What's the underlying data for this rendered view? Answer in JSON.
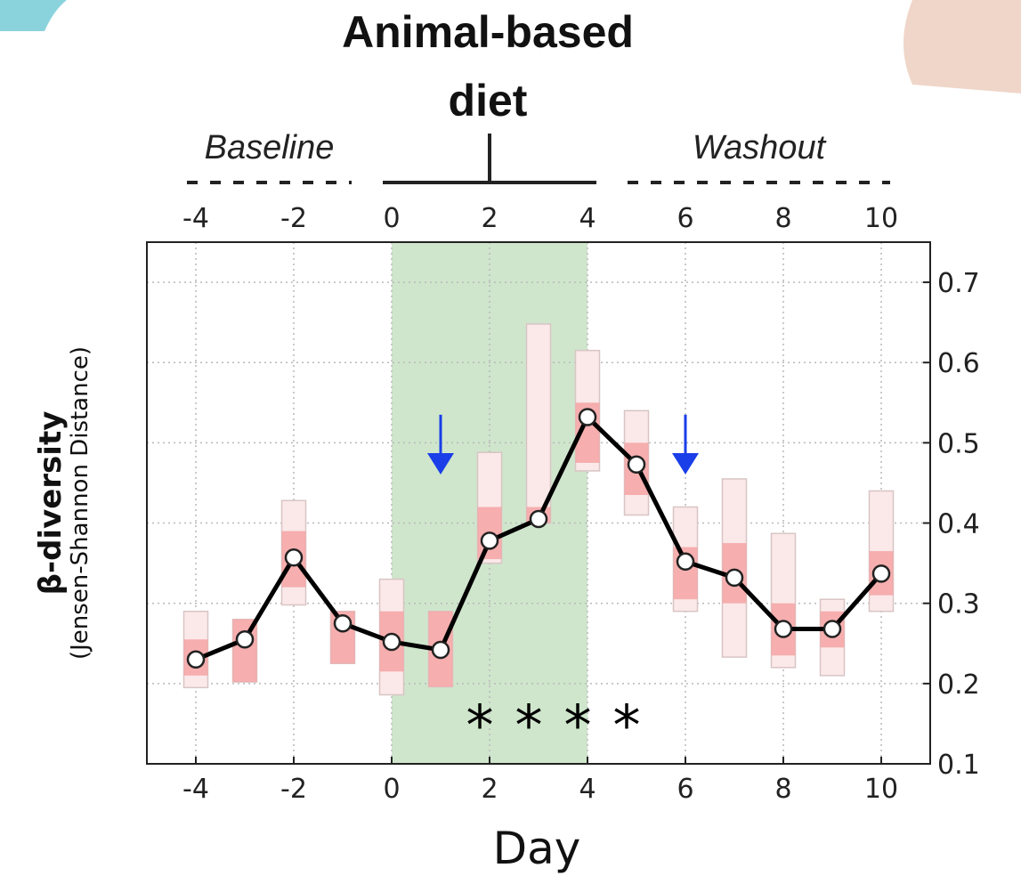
{
  "chart_data": {
    "type": "line",
    "title": "Animal-based diet",
    "xlabel": "Day",
    "ylabel": "β-diversity",
    "ylabel_sub": "(Jensen-Shannon Distance)",
    "xlim": [
      -5,
      11
    ],
    "ylim": [
      0.1,
      0.75
    ],
    "x_ticks": [
      "-4",
      "-2",
      "0",
      "2",
      "4",
      "6",
      "8",
      "10"
    ],
    "x_tick_values": [
      -4,
      -2,
      0,
      2,
      4,
      6,
      8,
      10
    ],
    "y_ticks": [
      "0.1",
      "0.2",
      "0.3",
      "0.4",
      "0.5",
      "0.6",
      "0.7"
    ],
    "y_tick_values": [
      0.1,
      0.2,
      0.3,
      0.4,
      0.5,
      0.6,
      0.7
    ],
    "grid": true,
    "phases": [
      {
        "label": "Baseline",
        "start": -4,
        "end": -1,
        "style": "dotted"
      },
      {
        "label": "",
        "start": 0,
        "end": 4,
        "style": "solid"
      },
      {
        "label": "Washout",
        "start": 5,
        "end": 10,
        "style": "dotted"
      }
    ],
    "diet_period": {
      "start": 0,
      "end": 4,
      "color": "#cfe6cc"
    },
    "series": [
      {
        "x": [
          -4,
          -3,
          -2,
          -1,
          0,
          1,
          2,
          3,
          4,
          5,
          6,
          7,
          8,
          9,
          10
        ],
        "values": [
          0.23,
          0.255,
          0.357,
          0.275,
          0.252,
          0.242,
          0.378,
          0.405,
          0.532,
          0.473,
          0.352,
          0.332,
          0.268,
          0.268,
          0.337
        ],
        "color": "#000000"
      }
    ],
    "ranges": [
      {
        "x": -4,
        "outer": [
          0.195,
          0.29
        ],
        "inner": [
          0.21,
          0.255
        ]
      },
      {
        "x": -3,
        "outer": [
          0.202,
          0.28
        ],
        "inner": [
          0.202,
          0.28
        ]
      },
      {
        "x": -2,
        "outer": [
          0.298,
          0.428
        ],
        "inner": [
          0.32,
          0.39
        ]
      },
      {
        "x": -1,
        "outer": [
          0.225,
          0.29
        ],
        "inner": [
          0.225,
          0.29
        ]
      },
      {
        "x": 0,
        "outer": [
          0.186,
          0.33
        ],
        "inner": [
          0.215,
          0.29
        ]
      },
      {
        "x": 1,
        "outer": [
          0.196,
          0.29
        ],
        "inner": [
          0.196,
          0.29
        ]
      },
      {
        "x": 2,
        "outer": [
          0.35,
          0.488
        ],
        "inner": [
          0.355,
          0.42
        ]
      },
      {
        "x": 3,
        "outer": [
          0.4,
          0.648
        ],
        "inner": [
          0.4,
          0.42
        ]
      },
      {
        "x": 4,
        "outer": [
          0.465,
          0.615
        ],
        "inner": [
          0.475,
          0.55
        ]
      },
      {
        "x": 5,
        "outer": [
          0.41,
          0.54
        ],
        "inner": [
          0.435,
          0.5
        ]
      },
      {
        "x": 6,
        "outer": [
          0.29,
          0.42
        ],
        "inner": [
          0.305,
          0.37
        ]
      },
      {
        "x": 7,
        "outer": [
          0.233,
          0.455
        ],
        "inner": [
          0.3,
          0.375
        ]
      },
      {
        "x": 8,
        "outer": [
          0.22,
          0.387
        ],
        "inner": [
          0.235,
          0.3
        ]
      },
      {
        "x": 9,
        "outer": [
          0.21,
          0.305
        ],
        "inner": [
          0.245,
          0.29
        ]
      },
      {
        "x": 10,
        "outer": [
          0.29,
          0.44
        ],
        "inner": [
          0.31,
          0.365
        ]
      }
    ],
    "markers": [
      {
        "type": "arrow",
        "x": 1,
        "color": "#1a3ee8"
      },
      {
        "type": "arrow",
        "x": 6,
        "color": "#1a3ee8"
      }
    ],
    "significance": {
      "symbol": "*",
      "x": [
        1.8,
        2.8,
        3.8,
        4.8
      ],
      "y": 0.155
    }
  }
}
